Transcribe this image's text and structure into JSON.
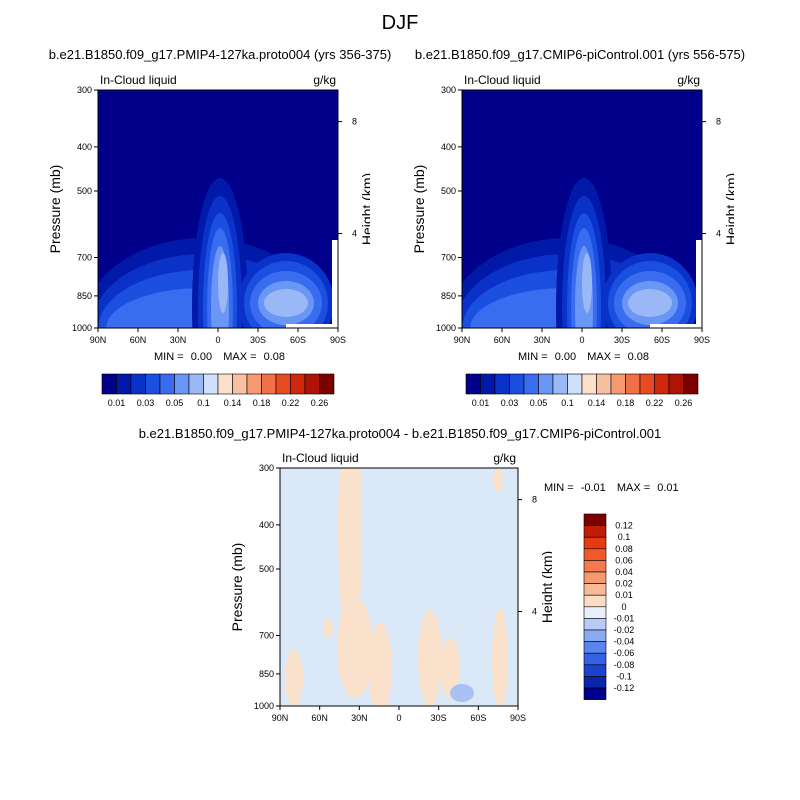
{
  "page": {
    "title": "DJF"
  },
  "chart_data": [
    {
      "type": "heatmap",
      "title": "b.e21.B1850.f09_g17.PMIP4-127ka.proto004 (yrs 356-375)",
      "left_label": "In-Cloud liquid",
      "right_label": "g/kg",
      "ylabel": "Pressure (mb)",
      "y2label": "Height (km)",
      "xticks": [
        "90N",
        "60N",
        "30N",
        "0",
        "30S",
        "60S",
        "90S"
      ],
      "yticks": [
        "300",
        "400",
        "500",
        "700",
        "850",
        "1000"
      ],
      "y2ticks": [
        "8",
        "4"
      ],
      "ylim": [
        1000,
        300
      ],
      "stats": {
        "min_label": "MIN =",
        "min": "0.00",
        "max_label": "MAX =",
        "max": "0.08"
      }
    },
    {
      "type": "heatmap",
      "title": "b.e21.B1850.f09_g17.CMIP6-piControl.001 (yrs 556-575)",
      "left_label": "In-Cloud liquid",
      "right_label": "g/kg",
      "ylabel": "Pressure (mb)",
      "y2label": "Height (km)",
      "xticks": [
        "90N",
        "60N",
        "30N",
        "0",
        "30S",
        "60S",
        "90S"
      ],
      "yticks": [
        "300",
        "400",
        "500",
        "700",
        "850",
        "1000"
      ],
      "y2ticks": [
        "8",
        "4"
      ],
      "ylim": [
        1000,
        300
      ],
      "stats": {
        "min_label": "MIN =",
        "min": "0.00",
        "max_label": "MAX =",
        "max": "0.08"
      }
    },
    {
      "type": "heatmap",
      "title": "b.e21.B1850.f09_g17.PMIP4-127ka.proto004 - b.e21.B1850.f09_g17.CMIP6-piControl.001",
      "left_label": "In-Cloud liquid",
      "right_label": "g/kg",
      "ylabel": "Pressure (mb)",
      "y2label": "Height (km)",
      "xticks": [
        "90N",
        "60N",
        "30N",
        "0",
        "30S",
        "60S",
        "90S"
      ],
      "yticks": [
        "300",
        "400",
        "500",
        "700",
        "850",
        "1000"
      ],
      "y2ticks": [
        "8",
        "4"
      ],
      "ylim": [
        1000,
        300
      ],
      "stats": {
        "min_label": "MIN =",
        "min": "-0.01",
        "max_label": "MAX =",
        "max": "0.01"
      }
    }
  ],
  "colorbar_main": {
    "labels": [
      "0.01",
      "0.03",
      "0.05",
      "0.1",
      "0.14",
      "0.18",
      "0.22",
      "0.26"
    ],
    "colors": [
      "#00008a",
      "#0019a8",
      "#0a32c8",
      "#1a4fe0",
      "#3a6cf0",
      "#6a96f5",
      "#9ab8f6",
      "#cfe0fa",
      "#fbe0ca",
      "#f8c0a0",
      "#f59a70",
      "#f07048",
      "#e84a22",
      "#d0280c",
      "#ad1405",
      "#7d0000"
    ]
  },
  "colorbar_diff": {
    "labels": [
      "0.12",
      "0.1",
      "0.08",
      "0.06",
      "0.04",
      "0.02",
      "0.01",
      "0",
      "-0.01",
      "-0.02",
      "-0.04",
      "-0.06",
      "-0.08",
      "-0.1",
      "-0.12"
    ],
    "colors": [
      "#7d0000",
      "#c01c06",
      "#e63a10",
      "#f05a2a",
      "#f27a4c",
      "#f59a70",
      "#f8bb98",
      "#fbdcc4",
      "#e8eefb",
      "#b6cbf6",
      "#8aaaf2",
      "#5a85ee",
      "#3462e6",
      "#1a42cc",
      "#0a25a8",
      "#00008a"
    ]
  }
}
